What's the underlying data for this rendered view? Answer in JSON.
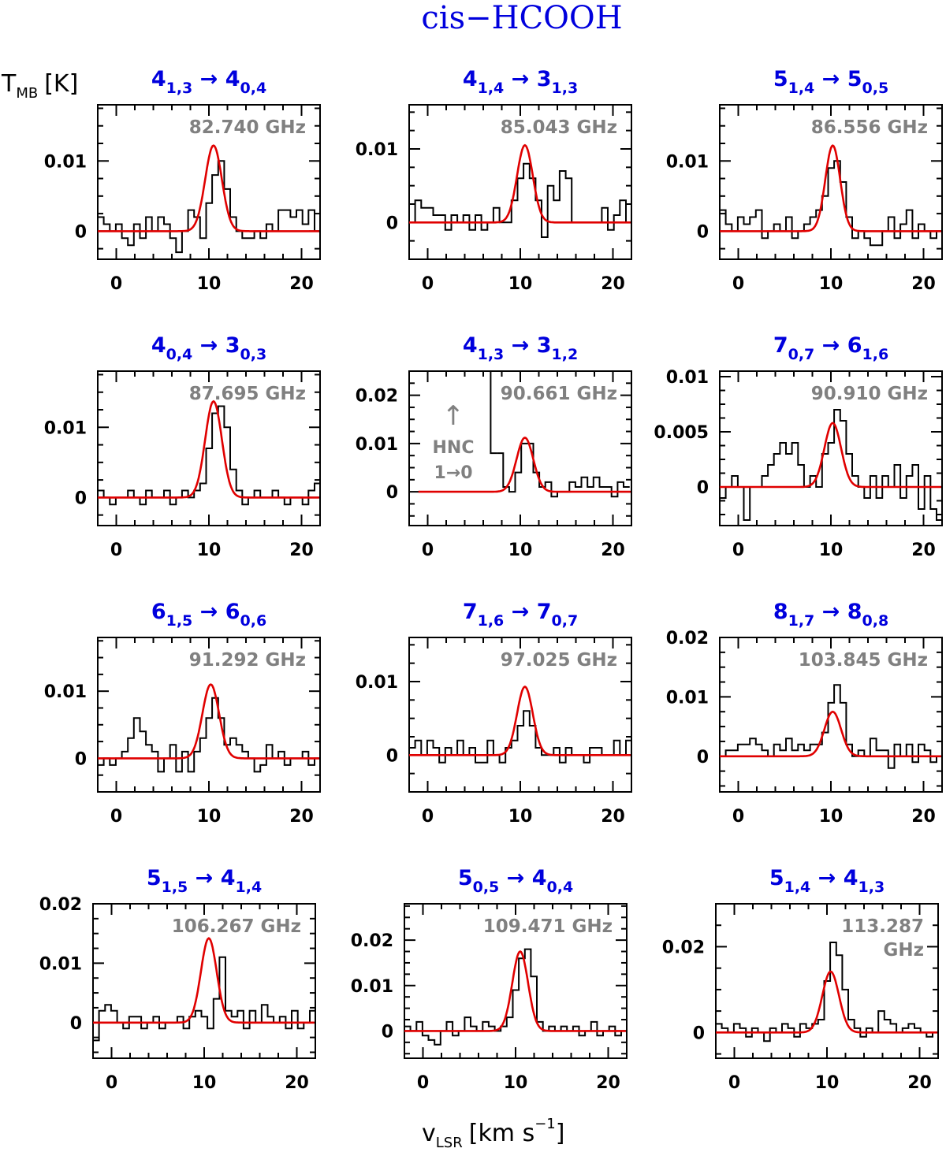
{
  "figure": {
    "title": "cis−HCOOH",
    "ylabel": {
      "main": "T",
      "sub": "MB",
      "unit": "[K]"
    },
    "xlabel": {
      "main": "v",
      "sub": "LSR",
      "unit": "[km s",
      "exp": "−1",
      "close": "]"
    },
    "colors": {
      "title": "#0000dd",
      "fit": "#e00000",
      "freq": "#808080",
      "data": "#000000"
    }
  },
  "chart_data": [
    {
      "type": "line",
      "transition": {
        "upper": "4",
        "upper_sub": "1,3",
        "arrow": "→",
        "lower": "4",
        "lower_sub": "0,4"
      },
      "frequency": "82.740 GHz",
      "xlim": [
        -2,
        22
      ],
      "ylim": [
        -0.004,
        0.018
      ],
      "xticks": [
        0,
        10,
        20
      ],
      "yticks": [
        0,
        0.01
      ],
      "ytick_labels": [
        "0",
        "0.01"
      ],
      "fit": {
        "center": 10.5,
        "peak": 0.0122,
        "sigma": 0.9
      },
      "series": [
        {
          "name": "spectrum",
          "x0": -2,
          "dx": 0.65,
          "values": [
            0.002,
            0.001,
            0.0,
            0.001,
            -0.001,
            -0.002,
            0.001,
            -0.001,
            0.002,
            0.0,
            0.002,
            0.001,
            -0.001,
            -0.003,
            0.0,
            0.003,
            0.002,
            -0.001,
            0.004,
            0.008,
            0.01,
            0.006,
            0.002,
            0.0,
            -0.001,
            -0.001,
            0.0,
            -0.001,
            0.001,
            0.0,
            0.003,
            0.003,
            0.002,
            0.003,
            0.001,
            0.003,
            0.0
          ]
        }
      ]
    },
    {
      "type": "line",
      "transition": {
        "upper": "4",
        "upper_sub": "1,4",
        "arrow": "→",
        "lower": "3",
        "lower_sub": "1,3"
      },
      "frequency": "85.043 GHz",
      "xlim": [
        -2,
        22
      ],
      "ylim": [
        -0.005,
        0.016
      ],
      "xticks": [
        0,
        10,
        20
      ],
      "yticks": [
        0,
        0.01
      ],
      "ytick_labels": [
        "0",
        "0.01"
      ],
      "fit": {
        "center": 10.5,
        "peak": 0.0105,
        "sigma": 0.85
      },
      "series": [
        {
          "name": "spectrum",
          "x0": -2,
          "dx": 0.65,
          "values": [
            0.0,
            0.003,
            0.002,
            0.002,
            0.001,
            0.001,
            -0.001,
            0.001,
            0.0,
            0.001,
            -0.001,
            0.001,
            -0.001,
            0.0,
            0.002,
            0.0,
            0.0,
            0.003,
            0.006,
            0.008,
            0.006,
            0.003,
            -0.002,
            0.005,
            0.003,
            0.007,
            0.006,
            0.0,
            0.0,
            0.0,
            0.0,
            0.0,
            0.002,
            -0.001,
            0.001,
            0.003,
            0.0
          ]
        }
      ]
    },
    {
      "type": "line",
      "transition": {
        "upper": "5",
        "upper_sub": "1,4",
        "arrow": "→",
        "lower": "5",
        "lower_sub": "0,5"
      },
      "frequency": "86.556 GHz",
      "xlim": [
        -2,
        22
      ],
      "ylim": [
        -0.004,
        0.018
      ],
      "xticks": [
        0,
        10,
        20
      ],
      "yticks": [
        0,
        0.01
      ],
      "ytick_labels": [
        "0",
        "0.01"
      ],
      "fit": {
        "center": 10.2,
        "peak": 0.0122,
        "sigma": 0.8
      },
      "series": [
        {
          "name": "spectrum",
          "x0": -2,
          "dx": 0.65,
          "values": [
            0.003,
            0.001,
            0.0,
            0.002,
            0.001,
            0.002,
            0.003,
            -0.001,
            0.0,
            0.001,
            0.0,
            0.002,
            -0.001,
            0.0,
            0.001,
            0.002,
            0.003,
            0.005,
            0.009,
            0.01,
            0.007,
            0.002,
            -0.001,
            0.0,
            -0.001,
            -0.002,
            -0.002,
            0.0,
            0.002,
            -0.001,
            0.001,
            0.003,
            -0.001,
            0.001,
            0.0,
            -0.001,
            0.0
          ]
        }
      ]
    },
    {
      "type": "line",
      "transition": {
        "upper": "4",
        "upper_sub": "0,4",
        "arrow": "→",
        "lower": "3",
        "lower_sub": "0,3"
      },
      "frequency": "87.695 GHz",
      "xlim": [
        -2,
        22
      ],
      "ylim": [
        -0.004,
        0.018
      ],
      "xticks": [
        0,
        10,
        20
      ],
      "yticks": [
        0,
        0.01
      ],
      "ytick_labels": [
        "0",
        "0.01"
      ],
      "fit": {
        "center": 10.5,
        "peak": 0.0137,
        "sigma": 0.9
      },
      "series": [
        {
          "name": "spectrum",
          "x0": -2,
          "dx": 0.65,
          "values": [
            0.001,
            0.0,
            -0.001,
            0.0,
            0.0,
            0.001,
            0.0,
            -0.001,
            0.001,
            0.0,
            0.0,
            0.001,
            -0.001,
            0.0,
            0.001,
            0.0,
            0.001,
            0.002,
            0.007,
            0.012,
            0.013,
            0.01,
            0.004,
            0.001,
            -0.001,
            0.0,
            0.001,
            0.0,
            0.0,
            0.001,
            0.0,
            -0.001,
            0.0,
            0.0,
            -0.001,
            0.001,
            0.002
          ]
        }
      ]
    },
    {
      "type": "line",
      "transition": {
        "upper": "4",
        "upper_sub": "1,3",
        "arrow": "→",
        "lower": "3",
        "lower_sub": "1,2"
      },
      "frequency": "90.661 GHz",
      "annotation": {
        "arrow": "↑",
        "line1": "HNC",
        "line2": "1→0"
      },
      "xlim": [
        -2,
        22
      ],
      "ylim": [
        -0.007,
        0.025
      ],
      "xticks": [
        0,
        10,
        20
      ],
      "yticks": [
        0,
        0.01,
        0.02
      ],
      "ytick_labels": [
        "0",
        "0.01",
        "0.02"
      ],
      "fit": {
        "center": 10.5,
        "peak": 0.0112,
        "sigma": 0.9
      },
      "series": [
        {
          "name": "spectrum",
          "x0": 7.5,
          "dx": 0.65,
          "values": [
            0.008,
            0.001,
            0.0,
            0.004,
            0.01,
            0.01,
            0.004,
            0.001,
            0.002,
            -0.001,
            0.0,
            0.0,
            0.002,
            0.001,
            0.003,
            0.001,
            0.003,
            0.001,
            0.001,
            -0.001,
            0.002,
            0.001
          ]
        }
      ],
      "hnc_line": {
        "x": 6.8,
        "from": 0.008,
        "to": 0.025
      }
    },
    {
      "type": "line",
      "transition": {
        "upper": "7",
        "upper_sub": "0,7",
        "arrow": "→",
        "lower": "6",
        "lower_sub": "1,6"
      },
      "frequency": "90.910 GHz",
      "xlim": [
        -2,
        22
      ],
      "ylim": [
        -0.0035,
        0.0105
      ],
      "xticks": [
        0,
        10,
        20
      ],
      "yticks": [
        0,
        0.005,
        0.01
      ],
      "ytick_labels": [
        "0",
        "0.005",
        "0.01"
      ],
      "fit": {
        "center": 10.2,
        "peak": 0.0058,
        "sigma": 0.9
      },
      "series": [
        {
          "name": "spectrum",
          "x0": -2,
          "dx": 0.65,
          "values": [
            -0.001,
            0.0,
            0.001,
            0.0,
            -0.003,
            0.0,
            0.0,
            0.001,
            0.002,
            0.003,
            0.004,
            0.003,
            0.004,
            0.002,
            0.0,
            0.001,
            0.0,
            0.003,
            0.004,
            0.007,
            0.006,
            0.003,
            0.001,
            0.0,
            -0.001,
            0.001,
            -0.001,
            0.001,
            0.0,
            0.002,
            -0.001,
            0.001,
            0.002,
            -0.002,
            0.001,
            -0.002,
            -0.003
          ]
        }
      ]
    },
    {
      "type": "line",
      "transition": {
        "upper": "6",
        "upper_sub": "1,5",
        "arrow": "→",
        "lower": "6",
        "lower_sub": "0,6"
      },
      "frequency": "91.292 GHz",
      "xlim": [
        -2,
        22
      ],
      "ylim": [
        -0.005,
        0.018
      ],
      "xticks": [
        0,
        10,
        20
      ],
      "yticks": [
        0,
        0.01
      ],
      "ytick_labels": [
        "0",
        "0.01"
      ],
      "fit": {
        "center": 10.2,
        "peak": 0.011,
        "sigma": 0.9
      },
      "series": [
        {
          "name": "spectrum",
          "x0": -2,
          "dx": 0.65,
          "values": [
            -0.001,
            0.0,
            -0.001,
            0.0,
            0.001,
            0.003,
            0.006,
            0.004,
            0.002,
            0.001,
            -0.002,
            0.0,
            0.002,
            -0.002,
            0.001,
            -0.002,
            0.001,
            0.003,
            0.006,
            0.009,
            0.006,
            0.002,
            0.003,
            0.002,
            0.001,
            0.0,
            -0.002,
            -0.001,
            0.002,
            0.0,
            0.001,
            -0.001,
            0.0,
            0.0,
            0.001,
            -0.001,
            0.0
          ]
        }
      ]
    },
    {
      "type": "line",
      "transition": {
        "upper": "7",
        "upper_sub": "1,6",
        "arrow": "→",
        "lower": "7",
        "lower_sub": "0,7"
      },
      "frequency": "97.025 GHz",
      "xlim": [
        -2,
        22
      ],
      "ylim": [
        -0.005,
        0.016
      ],
      "xticks": [
        0,
        10,
        20
      ],
      "yticks": [
        0,
        0.01
      ],
      "ytick_labels": [
        "0",
        "0.01"
      ],
      "fit": {
        "center": 10.5,
        "peak": 0.0093,
        "sigma": 0.85
      },
      "series": [
        {
          "name": "spectrum",
          "x0": -2,
          "dx": 0.65,
          "values": [
            0.001,
            0.002,
            0.0,
            0.002,
            0.001,
            -0.001,
            0.001,
            0.0,
            0.002,
            0.0,
            0.001,
            -0.001,
            -0.001,
            0.002,
            0.0,
            -0.001,
            0.001,
            0.002,
            0.004,
            0.006,
            0.004,
            0.001,
            0.0,
            0.0,
            0.001,
            -0.001,
            0.001,
            0.0,
            0.0,
            -0.001,
            0.001,
            0.001,
            0.0,
            0.0,
            0.002,
            0.0,
            0.002
          ]
        }
      ]
    },
    {
      "type": "line",
      "transition": {
        "upper": "8",
        "upper_sub": "1,7",
        "arrow": "→",
        "lower": "8",
        "lower_sub": "0,8"
      },
      "frequency": "103.845 GHz",
      "xlim": [
        -2,
        22
      ],
      "ylim": [
        -0.006,
        0.02
      ],
      "xticks": [
        0,
        10,
        20
      ],
      "yticks": [
        0,
        0.01,
        0.02
      ],
      "ytick_labels": [
        "0",
        "0.01",
        "0.02"
      ],
      "fit": {
        "center": 10.2,
        "peak": 0.0075,
        "sigma": 0.9
      },
      "series": [
        {
          "name": "spectrum",
          "x0": -2,
          "dx": 0.65,
          "values": [
            0.0,
            0.001,
            0.001,
            0.002,
            0.002,
            0.003,
            0.002,
            0.001,
            0.0,
            0.002,
            0.001,
            0.003,
            0.001,
            0.002,
            0.001,
            0.002,
            0.002,
            0.004,
            0.009,
            0.012,
            0.009,
            0.002,
            0.0,
            0.001,
            0.0,
            0.003,
            0.001,
            0.001,
            -0.002,
            0.002,
            0.0,
            0.002,
            -0.001,
            0.002,
            0.001,
            -0.001,
            0.0
          ]
        }
      ]
    },
    {
      "type": "line",
      "transition": {
        "upper": "5",
        "upper_sub": "1,5",
        "arrow": "→",
        "lower": "4",
        "lower_sub": "1,4"
      },
      "frequency": "106.267 GHz",
      "xlim": [
        -2,
        22
      ],
      "ylim": [
        -0.006,
        0.02
      ],
      "xticks": [
        0,
        10,
        20
      ],
      "yticks": [
        0,
        0.01,
        0.02
      ],
      "ytick_labels": [
        "0",
        "0.01",
        "0.02"
      ],
      "fit": {
        "center": 10.5,
        "peak": 0.0142,
        "sigma": 0.85
      },
      "series": [
        {
          "name": "spectrum",
          "x0": -2,
          "dx": 0.65,
          "values": [
            -0.003,
            0.002,
            0.003,
            0.002,
            0.0,
            -0.001,
            0.001,
            0.001,
            -0.001,
            0.0,
            0.001,
            -0.001,
            0.0,
            0.0,
            0.001,
            -0.001,
            0.001,
            0.002,
            0.001,
            -0.001,
            0.004,
            0.011,
            0.002,
            0.001,
            0.002,
            -0.001,
            0.002,
            0.0,
            0.003,
            0.001,
            0.0,
            0.001,
            -0.001,
            0.002,
            -0.001,
            0.0,
            0.002
          ]
        }
      ]
    },
    {
      "type": "line",
      "transition": {
        "upper": "5",
        "upper_sub": "0,5",
        "arrow": "→",
        "lower": "4",
        "lower_sub": "0,4"
      },
      "frequency": "109.471 GHz",
      "xlim": [
        -2,
        22
      ],
      "ylim": [
        -0.006,
        0.028
      ],
      "xticks": [
        0,
        10,
        20
      ],
      "yticks": [
        0,
        0.01,
        0.02
      ],
      "ytick_labels": [
        "0",
        "0.01",
        "0.02"
      ],
      "fit": {
        "center": 10.5,
        "peak": 0.0175,
        "sigma": 0.85
      },
      "series": [
        {
          "name": "spectrum",
          "x0": -2,
          "dx": 0.65,
          "values": [
            0.001,
            0.0,
            0.002,
            -0.001,
            -0.002,
            -0.003,
            0.0,
            0.002,
            -0.001,
            0.0,
            0.003,
            0.001,
            0.0,
            0.002,
            0.001,
            0.0,
            0.001,
            0.003,
            0.009,
            0.016,
            0.018,
            0.012,
            0.002,
            0.0,
            0.001,
            0.0,
            0.001,
            0.0,
            0.001,
            -0.001,
            0.0,
            0.002,
            -0.001,
            0.0,
            0.001,
            -0.001,
            0.0
          ]
        }
      ]
    },
    {
      "type": "line",
      "transition": {
        "upper": "5",
        "upper_sub": "1,4",
        "arrow": "→",
        "lower": "4",
        "lower_sub": "1,3"
      },
      "frequency_lines": [
        "113.287",
        "GHz"
      ],
      "xlim": [
        -2,
        22
      ],
      "ylim": [
        -0.006,
        0.03
      ],
      "xticks": [
        0,
        10,
        20
      ],
      "yticks": [
        0,
        0.02
      ],
      "ytick_labels": [
        "0",
        "0.02"
      ],
      "fit": {
        "center": 10.4,
        "peak": 0.0142,
        "sigma": 0.9
      },
      "series": [
        {
          "name": "spectrum",
          "x0": -2,
          "dx": 0.65,
          "values": [
            0.002,
            0.001,
            0.0,
            0.002,
            0.001,
            -0.001,
            0.001,
            0.0,
            -0.002,
            0.001,
            0.0,
            0.002,
            0.001,
            -0.001,
            0.002,
            0.001,
            0.002,
            0.003,
            0.012,
            0.021,
            0.018,
            0.01,
            0.003,
            0.001,
            -0.001,
            0.001,
            0.0,
            0.005,
            0.003,
            0.002,
            0.0,
            0.001,
            0.002,
            0.001,
            0.0,
            -0.001,
            0.0
          ]
        }
      ]
    }
  ]
}
